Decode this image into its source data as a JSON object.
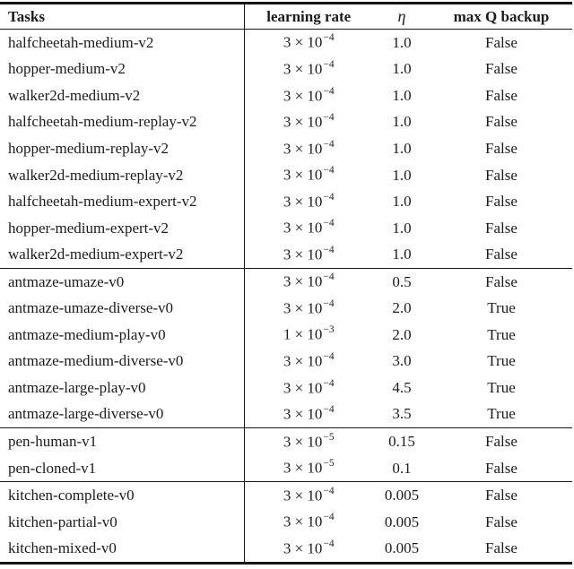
{
  "table": {
    "columns": [
      "Tasks",
      "learning rate",
      "η",
      "max Q backup"
    ],
    "rows": [
      {
        "task": "halfcheetah-medium-v2",
        "lr_base": "3 × 10",
        "lr_exp": "−4",
        "eta": "1.0",
        "max_q": "False",
        "section": 1
      },
      {
        "task": "hopper-medium-v2",
        "lr_base": "3 × 10",
        "lr_exp": "−4",
        "eta": "1.0",
        "max_q": "False",
        "section": 1
      },
      {
        "task": "walker2d-medium-v2",
        "lr_base": "3 × 10",
        "lr_exp": "−4",
        "eta": "1.0",
        "max_q": "False",
        "section": 1
      },
      {
        "task": "halfcheetah-medium-replay-v2",
        "lr_base": "3 × 10",
        "lr_exp": "−4",
        "eta": "1.0",
        "max_q": "False",
        "section": 1
      },
      {
        "task": "hopper-medium-replay-v2",
        "lr_base": "3 × 10",
        "lr_exp": "−4",
        "eta": "1.0",
        "max_q": "False",
        "section": 1
      },
      {
        "task": "walker2d-medium-replay-v2",
        "lr_base": "3 × 10",
        "lr_exp": "−4",
        "eta": "1.0",
        "max_q": "False",
        "section": 1
      },
      {
        "task": "halfcheetah-medium-expert-v2",
        "lr_base": "3 × 10",
        "lr_exp": "−4",
        "eta": "1.0",
        "max_q": "False",
        "section": 1
      },
      {
        "task": "hopper-medium-expert-v2",
        "lr_base": "3 × 10",
        "lr_exp": "−4",
        "eta": "1.0",
        "max_q": "False",
        "section": 1
      },
      {
        "task": "walker2d-medium-expert-v2",
        "lr_base": "3 × 10",
        "lr_exp": "−4",
        "eta": "1.0",
        "max_q": "False",
        "section": 1
      },
      {
        "task": "antmaze-umaze-v0",
        "lr_base": "3 × 10",
        "lr_exp": "−4",
        "eta": "0.5",
        "max_q": "False",
        "section": 2
      },
      {
        "task": "antmaze-umaze-diverse-v0",
        "lr_base": "3 × 10",
        "lr_exp": "−4",
        "eta": "2.0",
        "max_q": "True",
        "section": 2
      },
      {
        "task": "antmaze-medium-play-v0",
        "lr_base": "1 × 10",
        "lr_exp": "−3",
        "eta": "2.0",
        "max_q": "True",
        "section": 2
      },
      {
        "task": "antmaze-medium-diverse-v0",
        "lr_base": "3 × 10",
        "lr_exp": "−4",
        "eta": "3.0",
        "max_q": "True",
        "section": 2
      },
      {
        "task": "antmaze-large-play-v0",
        "lr_base": "3 × 10",
        "lr_exp": "−4",
        "eta": "4.5",
        "max_q": "True",
        "section": 2
      },
      {
        "task": "antmaze-large-diverse-v0",
        "lr_base": "3 × 10",
        "lr_exp": "−4",
        "eta": "3.5",
        "max_q": "True",
        "section": 2
      },
      {
        "task": "pen-human-v1",
        "lr_base": "3 × 10",
        "lr_exp": "−5",
        "eta": "0.15",
        "max_q": "False",
        "section": 3
      },
      {
        "task": "pen-cloned-v1",
        "lr_base": "3 × 10",
        "lr_exp": "−5",
        "eta": "0.1",
        "max_q": "False",
        "section": 3
      },
      {
        "task": "kitchen-complete-v0",
        "lr_base": "3 × 10",
        "lr_exp": "−4",
        "eta": "0.005",
        "max_q": "False",
        "section": 4
      },
      {
        "task": "kitchen-partial-v0",
        "lr_base": "3 × 10",
        "lr_exp": "−4",
        "eta": "0.005",
        "max_q": "False",
        "section": 4
      },
      {
        "task": "kitchen-mixed-v0",
        "lr_base": "3 × 10",
        "lr_exp": "−4",
        "eta": "0.005",
        "max_q": "False",
        "section": 4
      }
    ]
  }
}
